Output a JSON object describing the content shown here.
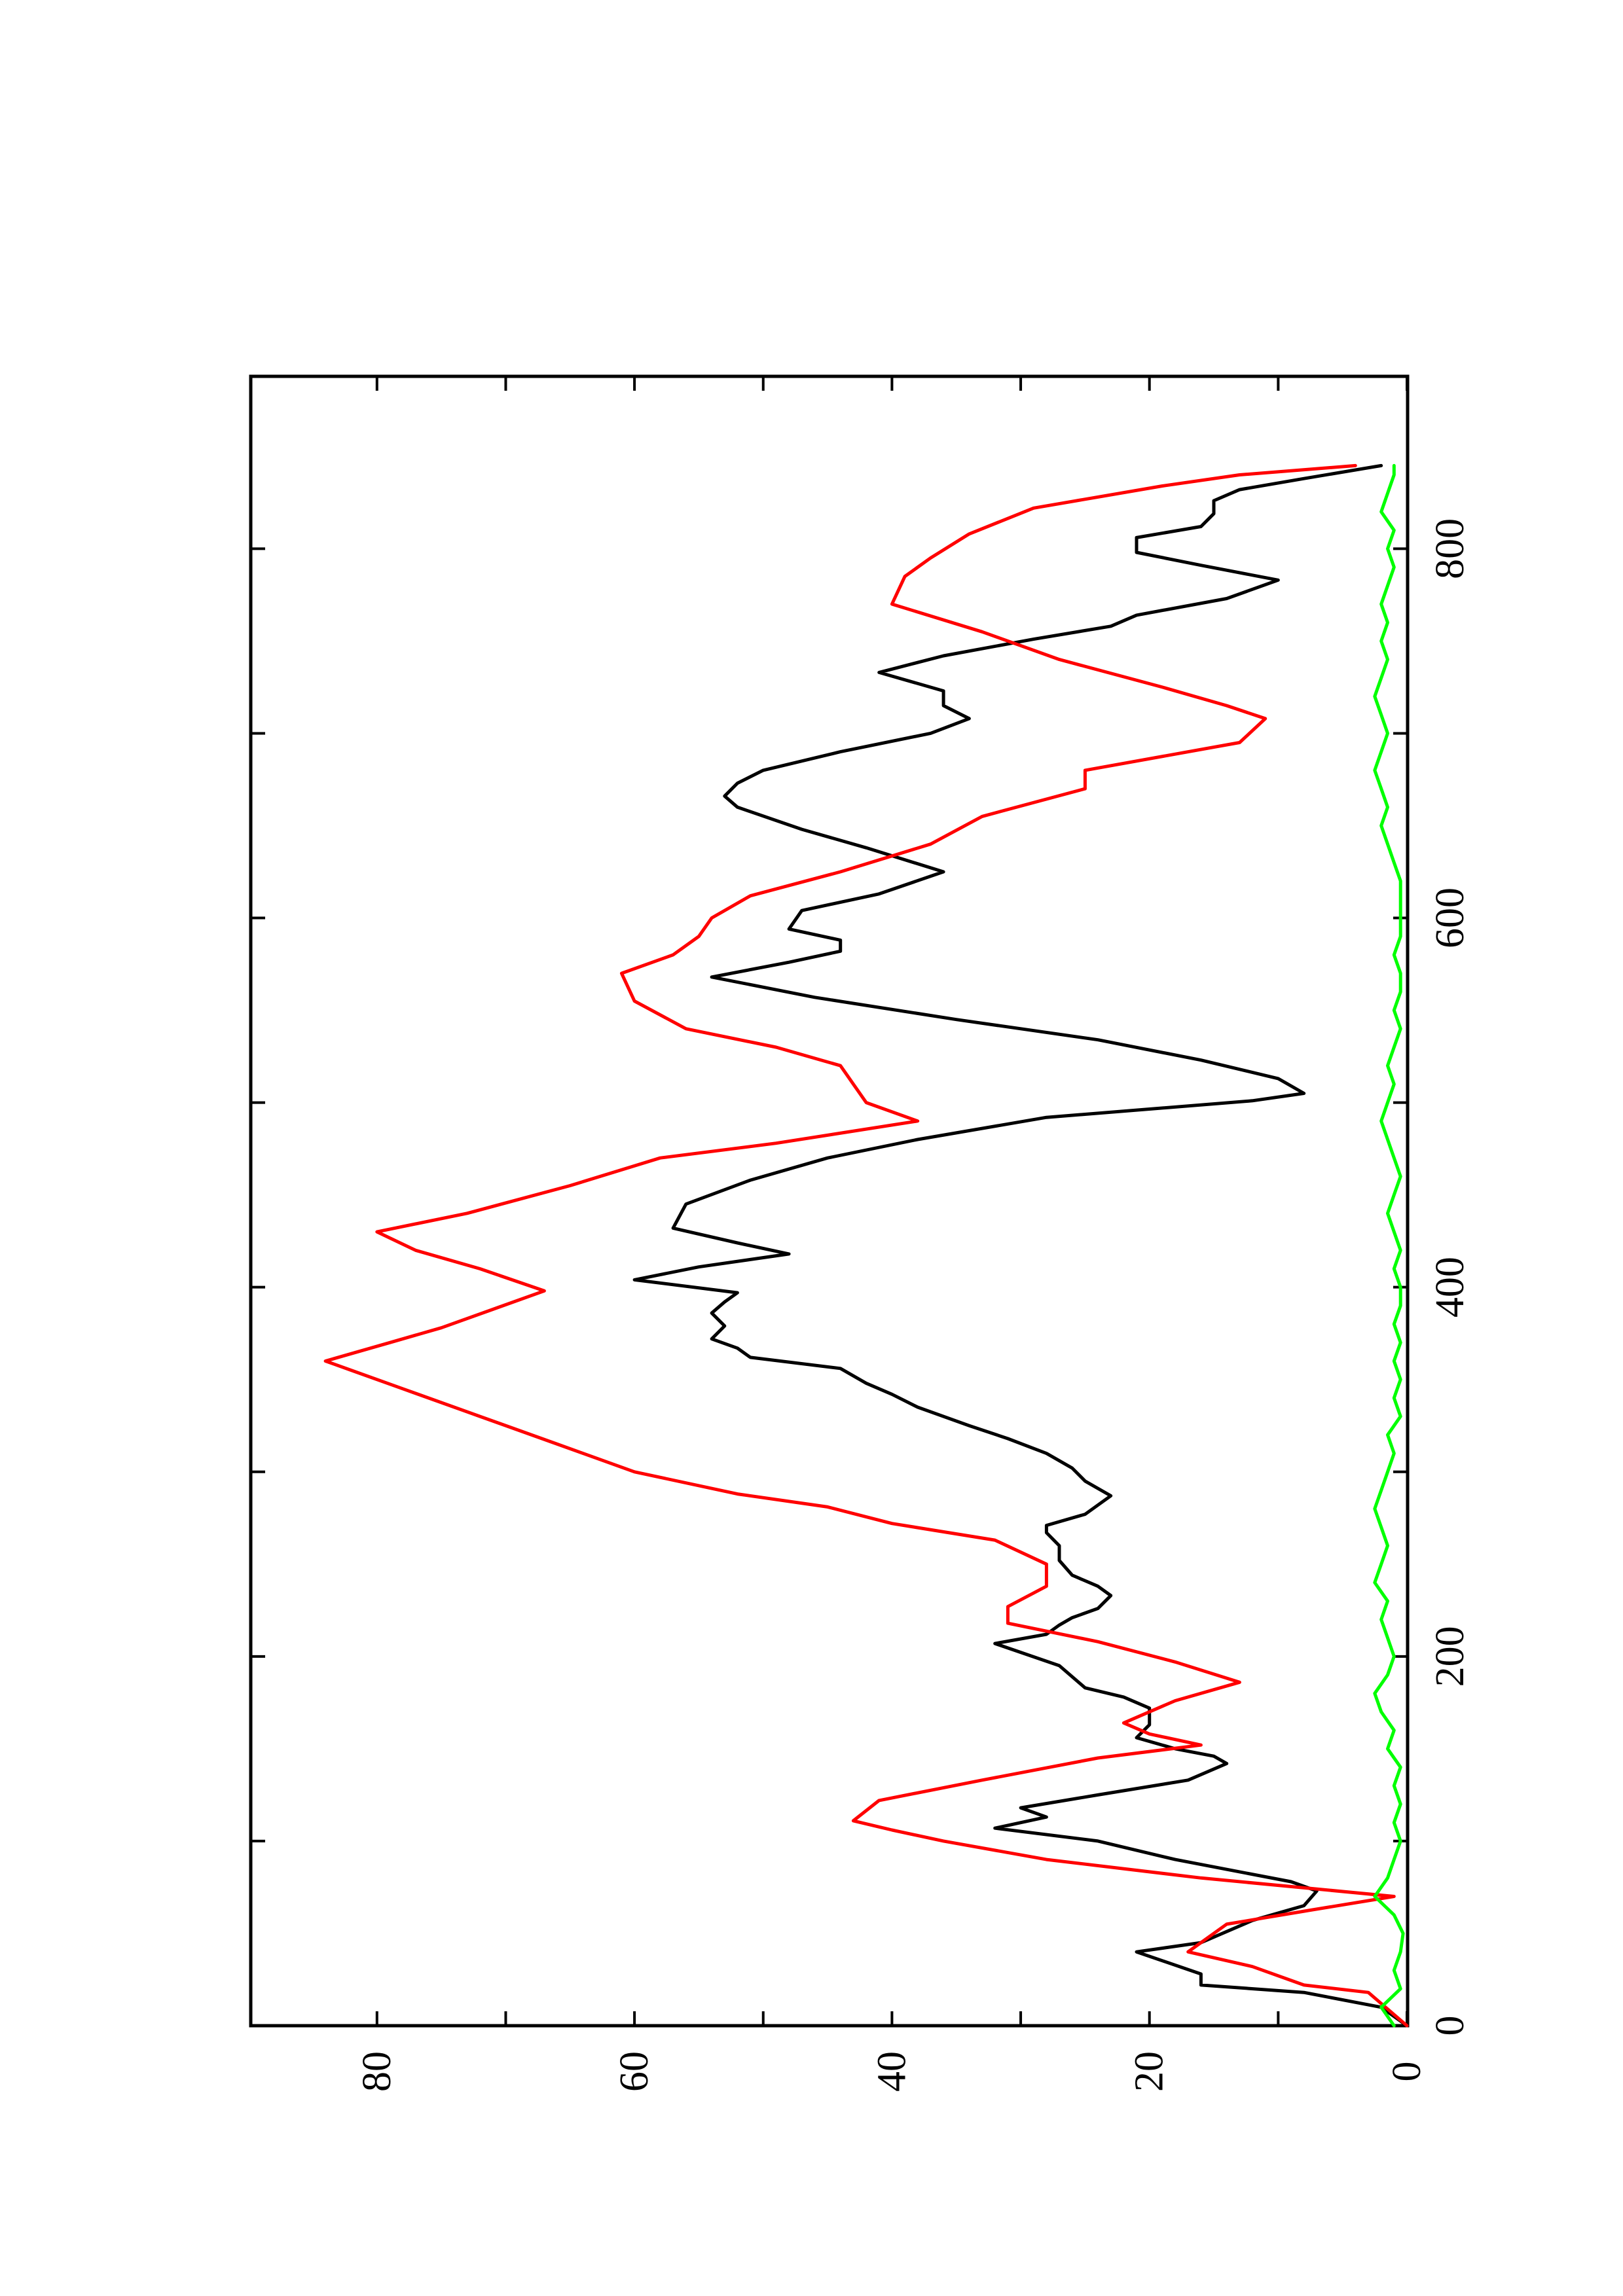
{
  "chart_data": {
    "type": "line",
    "orientation": "rotated 90 degrees counter-clockwise on the page",
    "title": "",
    "xlabel": "",
    "ylabel": "",
    "xlim": [
      0,
      880
    ],
    "ylim": [
      0,
      90
    ],
    "x_ticks": [
      "0",
      "200",
      "400",
      "600",
      "800"
    ],
    "y_ticks": [
      "0",
      "20",
      "40",
      "60",
      "80"
    ],
    "grid": false,
    "legend": "none",
    "series": [
      {
        "color": "#000000",
        "x": [
          0,
          10,
          18,
          22,
          28,
          40,
          45,
          57,
          65,
          73,
          78,
          90,
          100,
          107,
          113,
          118,
          125,
          133,
          142,
          146,
          150,
          156,
          163,
          172,
          178,
          183,
          195,
          207,
          212,
          217,
          221,
          226,
          233,
          238,
          244,
          252,
          260,
          267,
          271,
          277,
          287,
          295,
          302,
          310,
          318,
          325,
          335,
          342,
          348,
          356,
          362,
          367,
          372,
          379,
          386,
          392,
          397,
          404,
          411,
          418,
          424,
          432,
          445,
          458,
          470,
          480,
          492,
          501,
          505,
          513,
          523,
          534,
          545,
          557,
          568,
          576,
          582,
          588,
          594,
          604,
          613,
          625,
          638,
          648,
          660,
          666,
          673,
          680,
          690,
          700,
          708,
          715,
          723,
          733,
          742,
          751,
          758,
          764,
          773,
          783,
          791,
          798,
          806,
          812,
          819,
          826,
          832,
          838,
          845
        ],
        "y": [
          0,
          2,
          8,
          16,
          16,
          21,
          16,
          12,
          8,
          7,
          9,
          18,
          24,
          32,
          28,
          30,
          24,
          17,
          14,
          15,
          18,
          21,
          20,
          20,
          22,
          25,
          27,
          32,
          28,
          27,
          26,
          24,
          23,
          24,
          26,
          27,
          27,
          28,
          28,
          25,
          23,
          25,
          26,
          28,
          31,
          34,
          38,
          40,
          42,
          44,
          51,
          52,
          54,
          53,
          54,
          53,
          52,
          60,
          55,
          48,
          52,
          57,
          56,
          51,
          45,
          38,
          28,
          12,
          8,
          10,
          16,
          24,
          35,
          46,
          54,
          48,
          44,
          44,
          48,
          47,
          41,
          36,
          42,
          47,
          52,
          53,
          52,
          50,
          44,
          37,
          34,
          36,
          36,
          41,
          36,
          29,
          23,
          21,
          14,
          10,
          16,
          21,
          21,
          16,
          15,
          15,
          13,
          8,
          2
        ]
      },
      {
        "color": "#ff0000",
        "x": [
          0,
          18,
          22,
          32,
          40,
          55,
          62,
          70,
          80,
          90,
          100,
          106,
          111,
          122,
          133,
          145,
          152,
          158,
          164,
          176,
          186,
          197,
          208,
          218,
          227,
          238,
          250,
          263,
          272,
          281,
          288,
          300,
          315,
          330,
          345,
          355,
          360,
          370,
          378,
          388,
          398,
          410,
          420,
          430,
          440,
          455,
          470,
          478,
          490,
          500,
          510,
          520,
          530,
          540,
          555,
          570,
          580,
          590,
          600,
          612,
          625,
          640,
          655,
          670,
          680,
          695,
          708,
          715,
          725,
          740,
          755,
          770,
          785,
          795,
          808,
          822,
          834,
          840,
          845
        ],
        "y": [
          0,
          3,
          8,
          12,
          17,
          14,
          8,
          1,
          16,
          28,
          36,
          40,
          43,
          41,
          33,
          24,
          16,
          20,
          22,
          18,
          13,
          18,
          24,
          31,
          31,
          28,
          28,
          32,
          40,
          45,
          52,
          60,
          66,
          72,
          78,
          82,
          84,
          79,
          75,
          71,
          67,
          72,
          77,
          80,
          73,
          65,
          58,
          49,
          38,
          42,
          43,
          44,
          49,
          56,
          60,
          61,
          57,
          55,
          54,
          51,
          44,
          37,
          33,
          25,
          25,
          13,
          11,
          14,
          19,
          27,
          33,
          40,
          39,
          37,
          34,
          29,
          19,
          13,
          4
        ]
      },
      {
        "color": "#00ff00",
        "x": [
          0,
          10,
          20,
          30,
          40,
          50,
          60,
          70,
          80,
          90,
          100,
          110,
          120,
          130,
          140,
          150,
          160,
          170,
          180,
          190,
          200,
          210,
          220,
          230,
          240,
          250,
          260,
          270,
          280,
          290,
          300,
          310,
          320,
          330,
          340,
          350,
          360,
          370,
          380,
          390,
          400,
          410,
          420,
          430,
          440,
          450,
          460,
          470,
          480,
          490,
          500,
          510,
          520,
          530,
          540,
          550,
          560,
          570,
          580,
          590,
          600,
          610,
          620,
          630,
          640,
          650,
          660,
          670,
          680,
          690,
          700,
          710,
          720,
          730,
          740,
          750,
          760,
          770,
          780,
          790,
          800,
          810,
          820,
          830,
          840,
          845
        ],
        "y": [
          1,
          2,
          0.5,
          1,
          0.5,
          0.3,
          1,
          2.5,
          1.5,
          1,
          0.5,
          1,
          0.5,
          1,
          0.5,
          1.5,
          1,
          2,
          2.5,
          1.5,
          1,
          1.5,
          2,
          1.5,
          2.5,
          2,
          1.5,
          2,
          2.5,
          2,
          1.5,
          1,
          1.5,
          0.5,
          1,
          0.5,
          1,
          0.5,
          1,
          0.5,
          0.5,
          1,
          0.5,
          1,
          1.5,
          1,
          0.5,
          1,
          1.5,
          2,
          1.5,
          1,
          1.5,
          1,
          0.5,
          1,
          0.5,
          0.5,
          1,
          0.5,
          0.5,
          0.5,
          0.5,
          1,
          1.5,
          2,
          1.5,
          2,
          2.5,
          2,
          1.5,
          2,
          2.5,
          2,
          1.5,
          2,
          1.5,
          2,
          1.5,
          1,
          1.5,
          1,
          2,
          1.5,
          1,
          1
        ]
      }
    ]
  }
}
